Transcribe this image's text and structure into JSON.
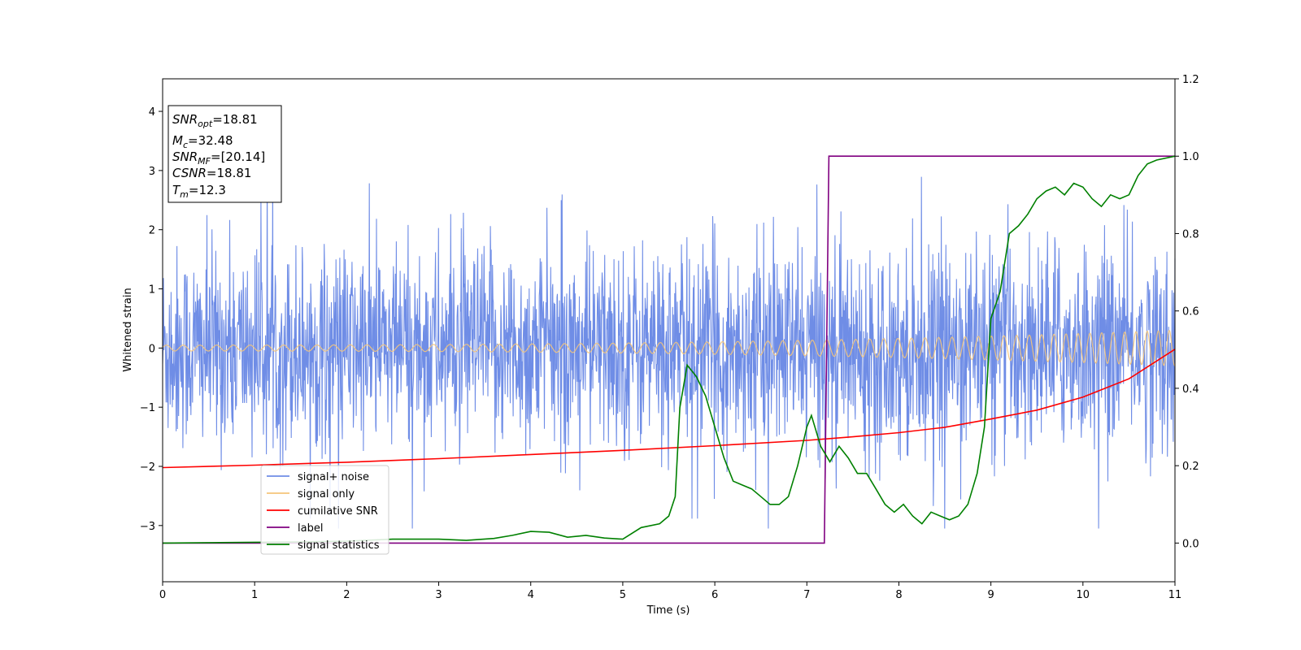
{
  "chart_data": {
    "type": "line",
    "title": "",
    "xlabel": "Time (s)",
    "ylabel": "Whitened strain",
    "y2label": "",
    "xlim": [
      0,
      11
    ],
    "ylim": [
      -3.95,
      4.55
    ],
    "y2lim": [
      -0.1,
      1.2
    ],
    "xticks": [
      0,
      1,
      2,
      3,
      4,
      5,
      6,
      7,
      8,
      9,
      10,
      11
    ],
    "yticks": [
      -3,
      -2,
      -1,
      0,
      1,
      2,
      3,
      4
    ],
    "y2ticks": [
      0.0,
      0.2,
      0.4,
      0.6,
      0.8,
      1.0,
      1.2
    ],
    "grid": false,
    "legend": {
      "placement": "lower-left",
      "entries": [
        {
          "key": "noise",
          "label": "signal+ noise",
          "color": "#6f8de6"
        },
        {
          "key": "signal",
          "label": "signal only",
          "color": "#f5c57a"
        },
        {
          "key": "cumsnr",
          "label": "cumilative SNR",
          "color": "#ff0000"
        },
        {
          "key": "label",
          "label": "label",
          "color": "#800080"
        },
        {
          "key": "stat",
          "label": "signal statistics",
          "color": "#008000"
        }
      ]
    },
    "info_box": {
      "placement": "top-left",
      "lines": [
        {
          "name": "SNR",
          "sub": "opt",
          "value": "=18.81"
        },
        {
          "name": "M",
          "sub": "c",
          "value": "=32.48"
        },
        {
          "name": "SNR",
          "sub": "MF",
          "value": "=[20.14]"
        },
        {
          "name": "CSNR",
          "sub": "",
          "value": "=18.81"
        },
        {
          "name": "T",
          "sub": "m",
          "value": "=12.3"
        }
      ]
    },
    "series": [
      {
        "key": "noise",
        "axis": "left",
        "description": "whitened noise around zero, std ~0.9, spanning 0-11 s"
      },
      {
        "key": "signal",
        "axis": "left",
        "description": "chirp oscillation, amplitude growing from ~0.05 to ~0.3",
        "x_start": 0,
        "x_end": 11,
        "amp_start": 0.05,
        "amp_end": 0.3
      },
      {
        "key": "cumsnr",
        "axis": "left",
        "x": [
          0,
          1,
          2,
          3,
          4,
          5,
          6,
          7,
          7.5,
          8,
          8.5,
          9,
          9.5,
          10,
          10.5,
          11
        ],
        "y": [
          -2.02,
          -1.98,
          -1.93,
          -1.87,
          -1.8,
          -1.73,
          -1.65,
          -1.56,
          -1.5,
          -1.43,
          -1.34,
          -1.2,
          -1.05,
          -0.83,
          -0.52,
          -0.02
        ]
      },
      {
        "key": "label",
        "axis": "right",
        "x": [
          0,
          7.19,
          7.24,
          11
        ],
        "y": [
          0,
          0,
          1,
          1
        ]
      },
      {
        "key": "stat",
        "axis": "right",
        "x": [
          0,
          0.5,
          1,
          1.5,
          2,
          2.5,
          3,
          3.3,
          3.6,
          3.8,
          4.0,
          4.2,
          4.4,
          4.6,
          4.8,
          5.0,
          5.2,
          5.4,
          5.5,
          5.57,
          5.62,
          5.7,
          5.8,
          5.9,
          6.0,
          6.1,
          6.2,
          6.3,
          6.4,
          6.5,
          6.6,
          6.7,
          6.8,
          6.9,
          7.0,
          7.05,
          7.15,
          7.25,
          7.35,
          7.45,
          7.55,
          7.65,
          7.75,
          7.85,
          7.95,
          8.05,
          8.15,
          8.25,
          8.35,
          8.45,
          8.55,
          8.65,
          8.75,
          8.85,
          8.93,
          9.0,
          9.1,
          9.2,
          9.3,
          9.4,
          9.5,
          9.6,
          9.7,
          9.8,
          9.9,
          10.0,
          10.1,
          10.2,
          10.3,
          10.4,
          10.5,
          10.6,
          10.7,
          10.8,
          11.0
        ],
        "y": [
          0.0,
          0.001,
          0.002,
          0.003,
          0.005,
          0.01,
          0.01,
          0.007,
          0.012,
          0.02,
          0.03,
          0.028,
          0.015,
          0.02,
          0.013,
          0.01,
          0.04,
          0.05,
          0.07,
          0.12,
          0.35,
          0.46,
          0.43,
          0.38,
          0.3,
          0.22,
          0.16,
          0.15,
          0.14,
          0.12,
          0.1,
          0.1,
          0.12,
          0.2,
          0.3,
          0.33,
          0.25,
          0.21,
          0.25,
          0.22,
          0.18,
          0.18,
          0.14,
          0.1,
          0.08,
          0.1,
          0.07,
          0.05,
          0.08,
          0.07,
          0.06,
          0.07,
          0.1,
          0.18,
          0.3,
          0.58,
          0.65,
          0.8,
          0.82,
          0.85,
          0.89,
          0.91,
          0.92,
          0.9,
          0.93,
          0.92,
          0.89,
          0.87,
          0.9,
          0.89,
          0.9,
          0.95,
          0.98,
          0.99,
          1.0
        ]
      }
    ]
  }
}
